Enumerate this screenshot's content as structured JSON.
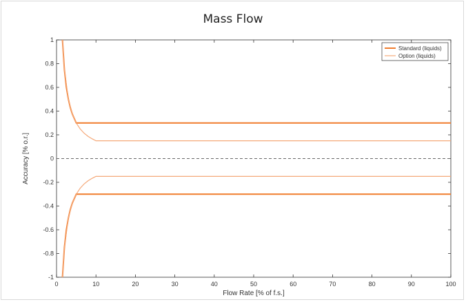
{
  "chart_data": {
    "type": "line",
    "title": "Mass Flow",
    "xlabel": "Flow Rate [% of f.s.]",
    "ylabel": "Accuracy [% o.r.]",
    "xlim": [
      0,
      100
    ],
    "ylim": [
      -1,
      1
    ],
    "xticks": [
      0,
      10,
      20,
      30,
      40,
      50,
      60,
      70,
      80,
      90,
      100
    ],
    "yticks": [
      -1,
      -0.8,
      -0.6,
      -0.4,
      -0.2,
      0,
      0.2,
      0.4,
      0.6,
      0.8,
      1
    ],
    "ytick_labels": [
      "-1",
      "-0.8",
      "-0.6",
      "-0.4",
      "-0.2",
      "0",
      "0.2",
      "0.4",
      "0.6",
      "0.8",
      "1"
    ],
    "grid": false,
    "legend_position": "top-right",
    "zero_line": "dashed",
    "series": [
      {
        "name": "Standard (liquids)",
        "color": "#f07c2c",
        "stroke": "thick",
        "x": [
          1.5,
          2,
          2.5,
          3,
          3.5,
          4,
          5,
          6,
          8,
          10,
          20,
          30,
          40,
          50,
          60,
          70,
          80,
          90,
          100
        ],
        "upper": [
          1.0,
          0.75,
          0.6,
          0.5,
          0.43,
          0.375,
          0.3,
          0.3,
          0.3,
          0.3,
          0.3,
          0.3,
          0.3,
          0.3,
          0.3,
          0.3,
          0.3,
          0.3,
          0.3
        ],
        "lower": [
          -1.0,
          -0.75,
          -0.6,
          -0.5,
          -0.43,
          -0.375,
          -0.3,
          -0.3,
          -0.3,
          -0.3,
          -0.3,
          -0.3,
          -0.3,
          -0.3,
          -0.3,
          -0.3,
          -0.3,
          -0.3,
          -0.3
        ]
      },
      {
        "name": "Option (liquids)",
        "color": "#f5a878",
        "stroke": "thin",
        "x": [
          1.5,
          2,
          3,
          4,
          5,
          6,
          7,
          8,
          9,
          10,
          20,
          30,
          40,
          50,
          60,
          70,
          80,
          90,
          100
        ],
        "upper": [
          1.0,
          0.75,
          0.5,
          0.375,
          0.3,
          0.25,
          0.214,
          0.1875,
          0.167,
          0.15,
          0.15,
          0.15,
          0.15,
          0.15,
          0.15,
          0.15,
          0.15,
          0.15,
          0.15
        ],
        "lower": [
          -1.0,
          -0.75,
          -0.5,
          -0.375,
          -0.3,
          -0.25,
          -0.214,
          -0.1875,
          -0.167,
          -0.15,
          -0.15,
          -0.15,
          -0.15,
          -0.15,
          -0.15,
          -0.15,
          -0.15,
          -0.15,
          -0.15
        ]
      }
    ]
  }
}
